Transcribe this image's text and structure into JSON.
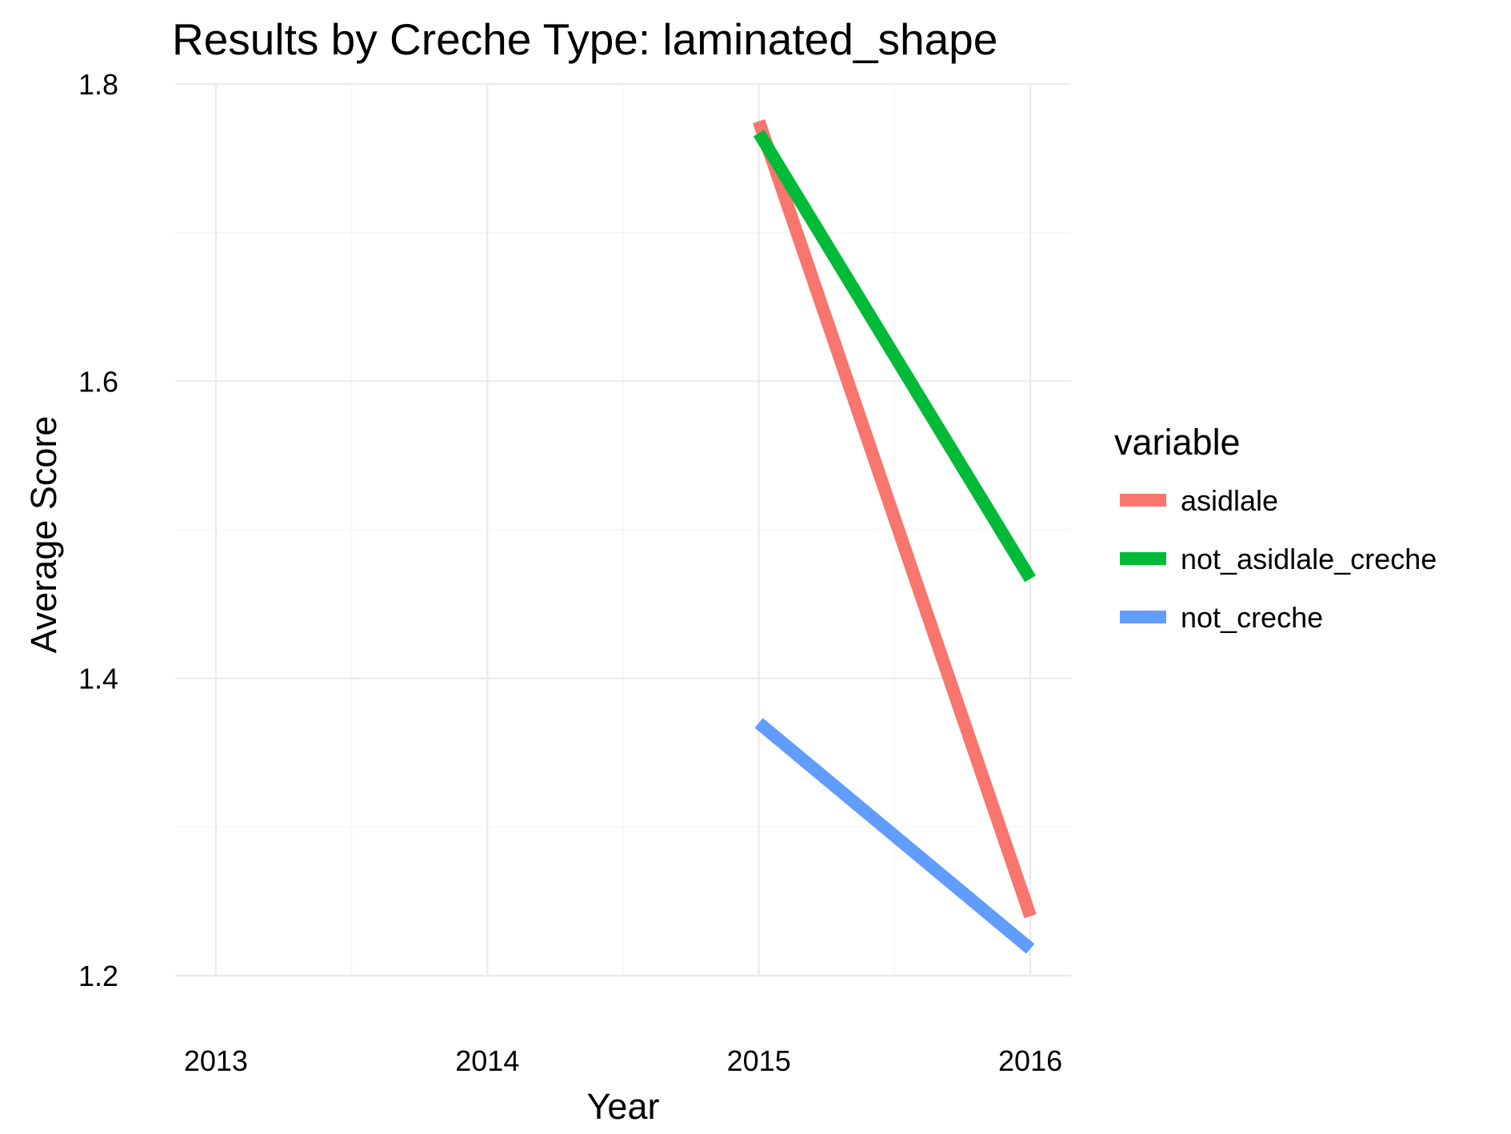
{
  "chart_data": {
    "type": "line",
    "title": "Results by Creche Type: laminated_shape",
    "xlabel": "Year",
    "ylabel": "Average Score",
    "x": [
      2015,
      2016
    ],
    "xlim": [
      2012.85,
      2016.15
    ],
    "ylim": [
      1.2,
      1.8
    ],
    "x_ticks": [
      "2013",
      "2014",
      "2015",
      "2016"
    ],
    "y_ticks": [
      "1.2",
      "1.4",
      "1.6",
      "1.8"
    ],
    "grid": true,
    "legend_title": "variable",
    "legend_position": "right",
    "series": [
      {
        "name": "asidlale",
        "color": "#F8766D",
        "values": [
          1.775,
          1.24
        ]
      },
      {
        "name": "not_asidlale_creche",
        "color": "#00BA38",
        "values": [
          1.767,
          1.467
        ]
      },
      {
        "name": "not_creche",
        "color": "#619CFF",
        "values": [
          1.37,
          1.218
        ]
      }
    ]
  }
}
